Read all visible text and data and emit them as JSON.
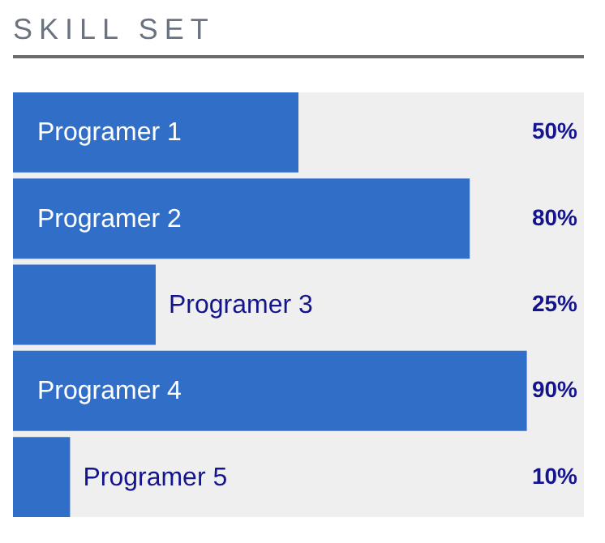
{
  "chart_data": {
    "type": "bar",
    "title": "SKILL SET",
    "orientation": "horizontal",
    "categories": [
      "Programer 1",
      "Programer 2",
      "Programer 3",
      "Programer 4",
      "Programer 5"
    ],
    "values": [
      50,
      80,
      25,
      90,
      10
    ],
    "value_labels": [
      "50%",
      "80%",
      "25%",
      "90%",
      "10%"
    ],
    "color": "#306ec8",
    "xlim": [
      0,
      100
    ]
  }
}
